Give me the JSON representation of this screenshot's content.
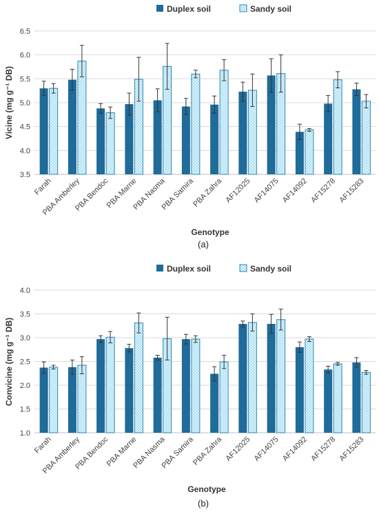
{
  "colors": {
    "duplex": "#1f6b99",
    "sandy_fill": "#d9f3fb",
    "sandy_stroke": "#2a86b8",
    "grid": "#d9d9d9",
    "axis": "#bfbfbf",
    "error_bar": "#333333"
  },
  "chart_data": [
    {
      "type": "bar",
      "panel_label": "(a)",
      "xlabel": "Genotype",
      "ylabel": "Vicine (mg g⁻¹ DB)",
      "ylim": [
        3.5,
        6.5
      ],
      "yticks": [
        "3.5",
        "4.0",
        "4.5",
        "5.0",
        "5.5",
        "6.0",
        "6.5"
      ],
      "grid": true,
      "legend_position": "top",
      "categories": [
        "Farah",
        "PBA Amberley",
        "PBA Bendoc",
        "PBA Marne",
        "PBA Nasma",
        "PBA Samira",
        "PBA Zahra",
        "AF12025",
        "AF14075",
        "AF14092",
        "AF15278",
        "AF15283"
      ],
      "series": [
        {
          "name": "Duplex soil",
          "values": [
            5.3,
            5.48,
            4.88,
            4.97,
            5.05,
            4.92,
            4.96,
            5.23,
            5.57,
            4.39,
            4.98,
            5.28
          ],
          "errors": [
            0.15,
            0.22,
            0.1,
            0.23,
            0.24,
            0.17,
            0.18,
            0.2,
            0.35,
            0.16,
            0.17,
            0.13
          ]
        },
        {
          "name": "Sandy soil",
          "values": [
            5.3,
            5.87,
            4.79,
            5.49,
            5.76,
            5.6,
            5.68,
            5.26,
            5.61,
            4.43,
            5.48,
            5.03
          ],
          "errors": [
            0.1,
            0.33,
            0.12,
            0.46,
            0.48,
            0.08,
            0.22,
            0.34,
            0.39,
            0.03,
            0.17,
            0.14
          ]
        }
      ]
    },
    {
      "type": "bar",
      "panel_label": "(b)",
      "xlabel": "Genotype",
      "ylabel": "Convicine (mg g⁻¹ DB)",
      "ylim": [
        1.0,
        4.0
      ],
      "yticks": [
        "1.0",
        "1.5",
        "2.0",
        "2.5",
        "3.0",
        "3.5",
        "4.0"
      ],
      "grid": true,
      "legend_position": "top",
      "categories": [
        "Farah",
        "PBA Amberley",
        "PBA Bendoc",
        "PBA Marne",
        "PBA Nasma",
        "PBA Samira",
        "PBA Zahra",
        "AF12025",
        "AF14075",
        "AF14092",
        "AF15278",
        "AF15283"
      ],
      "series": [
        {
          "name": "Duplex soil",
          "values": [
            2.37,
            2.38,
            2.97,
            2.78,
            2.58,
            2.97,
            2.24,
            3.29,
            3.29,
            2.8,
            2.33,
            2.48
          ],
          "errors": [
            0.12,
            0.15,
            0.07,
            0.08,
            0.05,
            0.1,
            0.15,
            0.06,
            0.2,
            0.11,
            0.07,
            0.1
          ]
        },
        {
          "name": "Sandy soil",
          "values": [
            2.38,
            2.42,
            3.01,
            3.31,
            2.98,
            2.97,
            2.49,
            3.32,
            3.38,
            2.97,
            2.45,
            2.27
          ],
          "errors": [
            0.04,
            0.18,
            0.12,
            0.21,
            0.45,
            0.07,
            0.14,
            0.18,
            0.22,
            0.05,
            0.03,
            0.04
          ]
        }
      ]
    }
  ]
}
